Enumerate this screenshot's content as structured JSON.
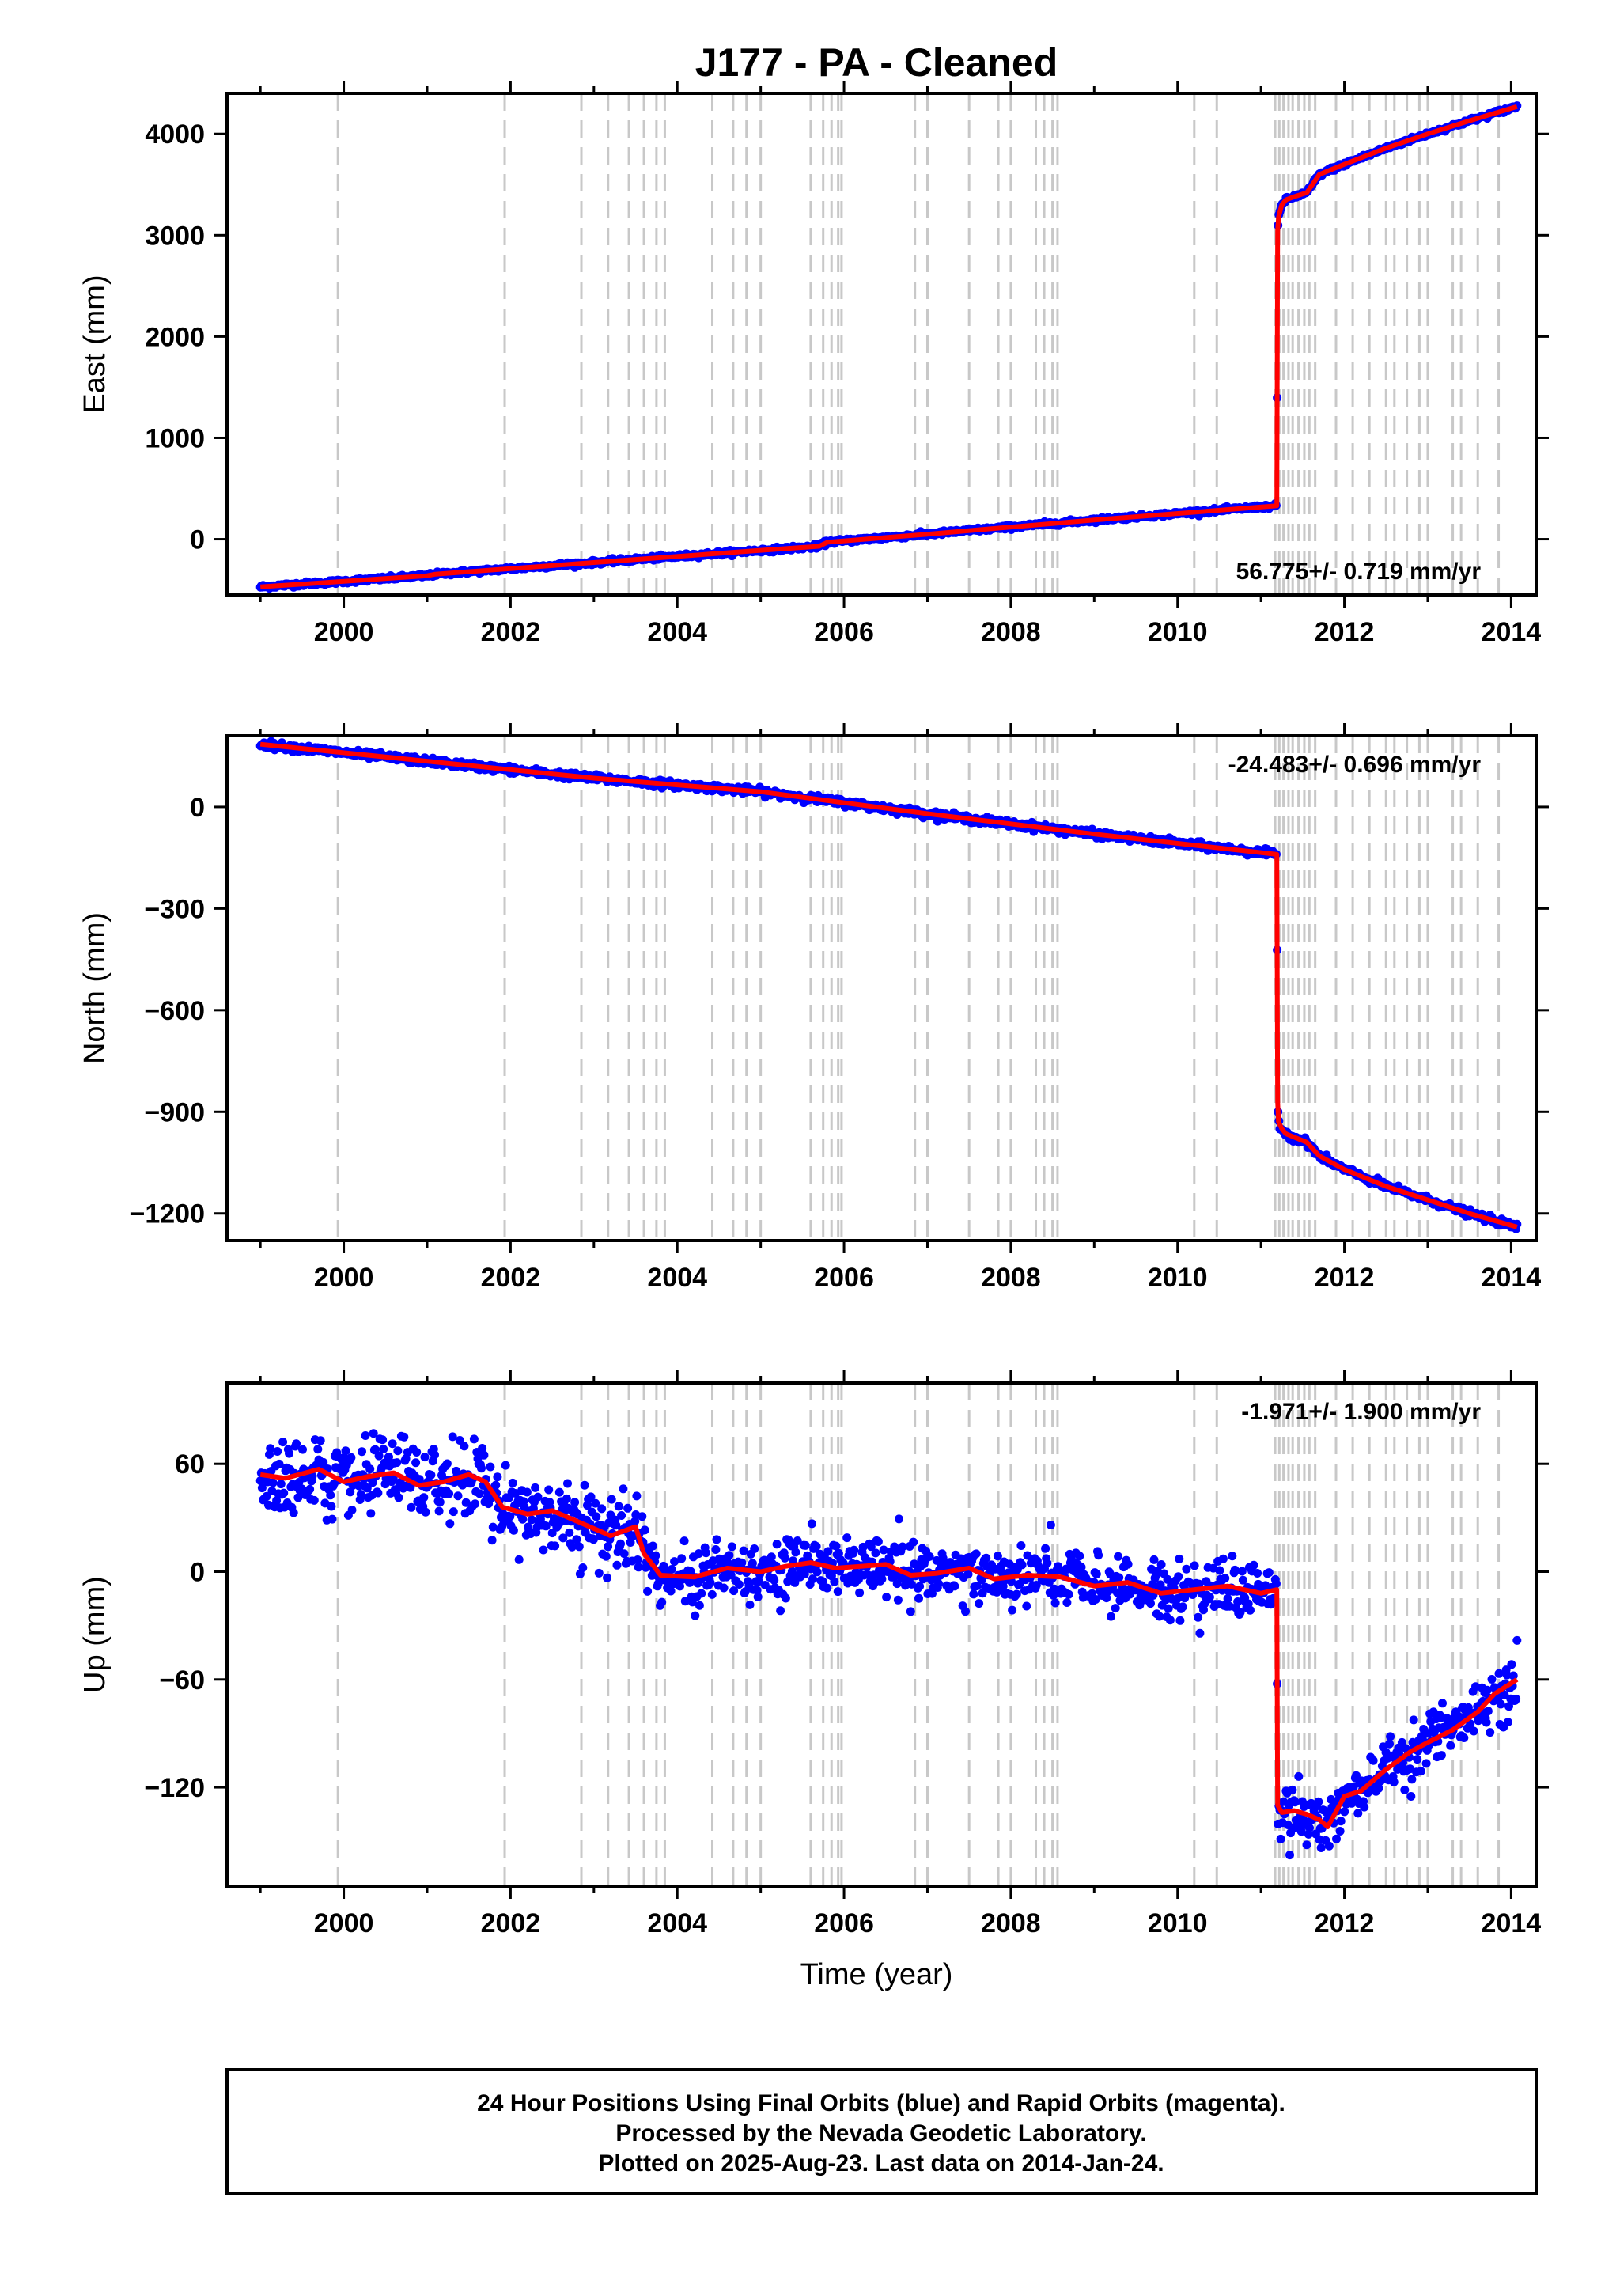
{
  "figure": {
    "title": "J177  - PA - Cleaned",
    "xlabel": "Time (year)"
  },
  "footer": {
    "line1": "24 Hour Positions Using Final Orbits (blue) and Rapid Orbits (magenta).",
    "line2": "Processed by the Nevada Geodetic Laboratory.",
    "line3": "Plotted on 2025-Aug-23. Last data on 2014-Jan-24."
  },
  "colors": {
    "data": "#0000ff",
    "model": "#ff0000",
    "event_lines": "#c8c8c8"
  },
  "chart_data": [
    {
      "type": "scatter",
      "panel": "east",
      "ylabel": "East (mm)",
      "rate_label": "56.775+/- 0.719 mm/yr",
      "rate_position": "bottom-right",
      "xlim": [
        1998.6,
        2014.3
      ],
      "ylim": [
        -550,
        4400
      ],
      "xticks": [
        2000,
        2002,
        2004,
        2006,
        2008,
        2010,
        2012,
        2014
      ],
      "yticks": [
        0,
        1000,
        2000,
        3000,
        4000
      ],
      "model_x": [
        1999.0,
        2001.0,
        2001.1,
        2003.0,
        2005.0,
        2005.7,
        2005.8,
        2007.0,
        2009.0,
        2011.19,
        2011.2,
        2011.21,
        2011.25,
        2011.3,
        2011.4,
        2011.55,
        2011.7,
        2012.0,
        2012.5,
        2013.0,
        2013.5,
        2014.07
      ],
      "model_y": [
        -470,
        -360,
        -345,
        -230,
        -110,
        -70,
        -30,
        50,
        190,
        330,
        3040,
        3180,
        3300,
        3350,
        3380,
        3420,
        3600,
        3700,
        3860,
        4000,
        4130,
        4270
      ],
      "scatter_noise_mm": 10
    },
    {
      "type": "scatter",
      "panel": "north",
      "ylabel": "North (mm)",
      "rate_label": "-24.483+/- 0.696 mm/yr",
      "rate_position": "top-right",
      "xlim": [
        1998.6,
        2014.3
      ],
      "ylim": [
        -1280,
        210
      ],
      "xticks": [
        2000,
        2002,
        2004,
        2006,
        2008,
        2010,
        2012,
        2014
      ],
      "yticks": [
        0,
        -300,
        -600,
        -900,
        -1200
      ],
      "model_x": [
        1999.0,
        2001.0,
        2003.0,
        2005.0,
        2007.0,
        2009.0,
        2011.19,
        2011.2,
        2011.21,
        2011.25,
        2011.3,
        2011.4,
        2011.55,
        2011.7,
        2012.0,
        2012.5,
        2013.0,
        2013.5,
        2014.07
      ],
      "model_y": [
        185,
        135,
        85,
        45,
        -20,
        -80,
        -140,
        -870,
        -930,
        -950,
        -965,
        -975,
        -990,
        -1030,
        -1070,
        -1120,
        -1160,
        -1200,
        -1240
      ],
      "scatter_noise_mm": 5
    },
    {
      "type": "scatter",
      "panel": "up",
      "ylabel": "Up (mm)",
      "rate_label": "-1.971+/- 1.900 mm/yr",
      "rate_position": "top-right",
      "xlim": [
        1998.6,
        2014.3
      ],
      "ylim": [
        -175,
        105
      ],
      "xticks": [
        2000,
        2002,
        2004,
        2006,
        2008,
        2010,
        2012,
        2014
      ],
      "yticks": [
        60,
        0,
        -60,
        -120
      ],
      "model_x": [
        1999.0,
        1999.3,
        1999.7,
        2000.0,
        2000.3,
        2000.6,
        2000.9,
        2001.2,
        2001.5,
        2001.7,
        2001.9,
        2002.2,
        2002.5,
        2002.8,
        2003.2,
        2003.5,
        2003.6,
        2003.8,
        2004.2,
        2004.6,
        2005.0,
        2005.3,
        2005.6,
        2005.9,
        2006.2,
        2006.5,
        2006.8,
        2007.1,
        2007.5,
        2007.8,
        2008.2,
        2008.6,
        2009.0,
        2009.4,
        2009.8,
        2010.2,
        2010.6,
        2011.0,
        2011.19,
        2011.2,
        2011.25,
        2011.4,
        2011.55,
        2011.7,
        2011.8,
        2012.0,
        2012.2,
        2012.5,
        2012.8,
        2013.0,
        2013.3,
        2013.6,
        2013.8,
        2014.07
      ],
      "model_y": [
        54,
        52,
        57,
        50,
        53,
        55,
        48,
        50,
        54,
        50,
        36,
        32,
        34,
        28,
        20,
        25,
        10,
        -2,
        -3,
        2,
        0,
        3,
        5,
        2,
        3,
        4,
        -2,
        -1,
        2,
        -4,
        -2,
        -3,
        -8,
        -6,
        -12,
        -10,
        -8,
        -12,
        -10,
        -130,
        -134,
        -133,
        -135,
        -138,
        -142,
        -125,
        -122,
        -110,
        -100,
        -95,
        -88,
        -78,
        -68,
        -60
      ],
      "scatter_noise_mm": 8
    }
  ],
  "event_years": [
    1999.93,
    2001.93,
    2002.85,
    2003.17,
    2003.42,
    2003.6,
    2003.75,
    2003.85,
    2004.42,
    2004.67,
    2004.83,
    2005.0,
    2005.6,
    2005.75,
    2005.85,
    2005.93,
    2005.97,
    2006.85,
    2007.0,
    2007.5,
    2007.85,
    2008.0,
    2008.3,
    2008.4,
    2008.5,
    2008.56,
    2010.2,
    2010.47,
    2011.17,
    2011.22,
    2011.27,
    2011.33,
    2011.38,
    2011.45,
    2011.52,
    2011.58,
    2011.65,
    2011.9,
    2012.1,
    2012.3,
    2012.5,
    2012.6,
    2012.75,
    2012.9,
    2013.0,
    2013.3,
    2013.4,
    2013.6,
    2013.85
  ]
}
